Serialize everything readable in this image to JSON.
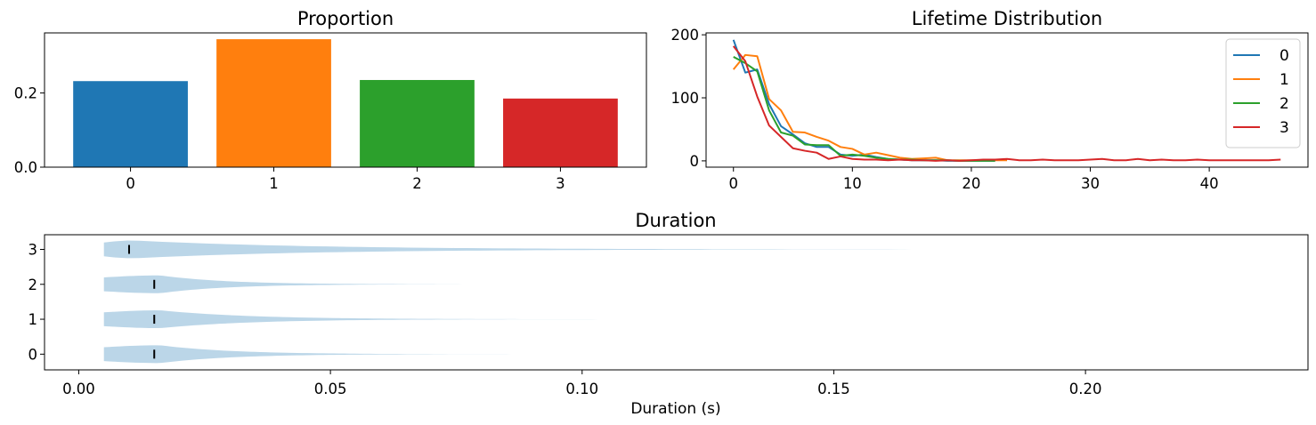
{
  "chart_data": [
    {
      "type": "bar",
      "title": "Proportion",
      "categories": [
        "0",
        "1",
        "2",
        "3"
      ],
      "values": [
        0.232,
        0.345,
        0.235,
        0.185
      ],
      "ylim": [
        0,
        0.362
      ],
      "yticks": [
        0.0,
        0.2
      ],
      "ytick_labels": [
        "0.0",
        "0.2"
      ],
      "colors": [
        "#1f77b4",
        "#ff7f0e",
        "#2ca02c",
        "#d62728"
      ],
      "grid": false
    },
    {
      "type": "line",
      "title": "Lifetime Distribution",
      "xlim": [
        -2.3,
        48.3
      ],
      "ylim": [
        -10,
        203
      ],
      "xticks": [
        0,
        10,
        20,
        30,
        40
      ],
      "xtick_labels": [
        "0",
        "10",
        "20",
        "30",
        "40"
      ],
      "yticks": [
        0,
        100,
        200
      ],
      "ytick_labels": [
        "0",
        "100",
        "200"
      ],
      "legend": {
        "placement": "top-right",
        "entries": [
          "0",
          "1",
          "2",
          "3"
        ]
      },
      "grid": false,
      "series": [
        {
          "name": "0",
          "color": "#1f77b4",
          "x": [
            0,
            1,
            2,
            3,
            4,
            5,
            6,
            7,
            8,
            9,
            10,
            11,
            12,
            13,
            14,
            15,
            16,
            17,
            18,
            19,
            20,
            21,
            22
          ],
          "y": [
            192,
            140,
            145,
            90,
            55,
            42,
            28,
            22,
            22,
            10,
            8,
            10,
            6,
            3,
            2,
            1,
            1,
            1,
            0,
            0,
            0,
            0,
            0
          ]
        },
        {
          "name": "1",
          "color": "#ff7f0e",
          "x": [
            0,
            1,
            2,
            3,
            4,
            5,
            6,
            7,
            8,
            9,
            10,
            11,
            12,
            13,
            14,
            15,
            16,
            17,
            18,
            19,
            20,
            21,
            22,
            23
          ],
          "y": [
            145,
            168,
            166,
            98,
            80,
            46,
            45,
            38,
            32,
            22,
            19,
            10,
            13,
            9,
            5,
            3,
            4,
            5,
            1,
            1,
            1,
            1,
            1,
            1
          ]
        },
        {
          "name": "2",
          "color": "#2ca02c",
          "x": [
            0,
            1,
            2,
            3,
            4,
            5,
            6,
            7,
            8,
            9,
            10,
            11,
            12,
            13,
            14,
            15,
            16,
            17,
            18,
            19,
            20,
            21,
            22
          ],
          "y": [
            165,
            155,
            142,
            80,
            45,
            40,
            26,
            25,
            25,
            8,
            10,
            8,
            5,
            3,
            2,
            2,
            1,
            1,
            1,
            0,
            0,
            0,
            0
          ]
        },
        {
          "name": "3",
          "color": "#d62728",
          "x": [
            0,
            1,
            2,
            3,
            4,
            5,
            6,
            7,
            8,
            9,
            10,
            11,
            12,
            13,
            14,
            15,
            16,
            17,
            18,
            19,
            20,
            21,
            22,
            23,
            24,
            25,
            26,
            27,
            28,
            29,
            30,
            31,
            32,
            33,
            34,
            35,
            36,
            37,
            38,
            39,
            40,
            41,
            42,
            43,
            44,
            45,
            46
          ],
          "y": [
            182,
            158,
            102,
            56,
            38,
            20,
            16,
            13,
            3,
            7,
            3,
            2,
            2,
            1,
            2,
            1,
            1,
            0,
            1,
            0,
            1,
            2,
            2,
            3,
            1,
            1,
            2,
            1,
            1,
            1,
            2,
            3,
            1,
            1,
            3,
            1,
            2,
            1,
            1,
            2,
            1,
            1,
            1,
            1,
            1,
            1,
            2
          ]
        }
      ]
    },
    {
      "type": "violin",
      "title": "Duration",
      "xlabel": "Duration (s)",
      "orientation": "horizontal",
      "xlim": [
        -0.0068,
        0.2442
      ],
      "ylim": [
        -0.45,
        3.42
      ],
      "xticks": [
        0.0,
        0.05,
        0.1,
        0.15,
        0.2
      ],
      "xtick_labels": [
        "0.00",
        "0.05",
        "0.10",
        "0.15",
        "0.20"
      ],
      "yticks": [
        0,
        1,
        2,
        3
      ],
      "ytick_labels": [
        "0",
        "1",
        "2",
        "3"
      ],
      "fill_color": "#1f77b4",
      "series": [
        {
          "name": "0",
          "min": 0.005,
          "median": 0.015,
          "max": 0.088
        },
        {
          "name": "1",
          "min": 0.005,
          "median": 0.015,
          "max": 0.107
        },
        {
          "name": "2",
          "min": 0.005,
          "median": 0.015,
          "max": 0.083
        },
        {
          "name": "3",
          "min": 0.005,
          "median": 0.01,
          "max": 0.191
        }
      ]
    }
  ]
}
